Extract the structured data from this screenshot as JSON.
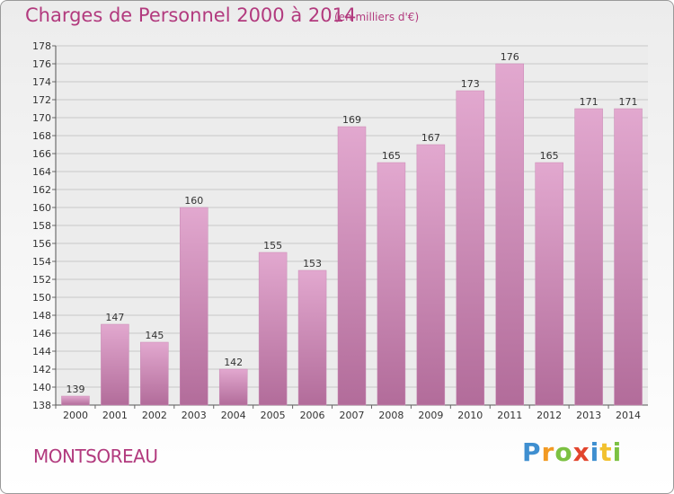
{
  "header": {
    "title": "Charges de Personnel 2000 à 2014",
    "subtitle": "(en milliers d'€)"
  },
  "footer": {
    "commune": "MONTSOREAU",
    "logo_text": "Proxiti"
  },
  "colors": {
    "bar_top": "#e2a8cf",
    "bar_bottom": "#b26c9a",
    "title": "#b23a7e"
  },
  "chart_data": {
    "type": "bar",
    "title": "Charges de Personnel 2000 à 2014",
    "subtitle": "(en milliers d'€)",
    "xlabel": "",
    "ylabel": "",
    "categories": [
      "2000",
      "2001",
      "2002",
      "2003",
      "2004",
      "2005",
      "2006",
      "2007",
      "2008",
      "2009",
      "2010",
      "2011",
      "2012",
      "2013",
      "2014"
    ],
    "values": [
      139,
      147,
      145,
      160,
      142,
      155,
      153,
      169,
      165,
      167,
      173,
      176,
      165,
      171,
      171
    ],
    "ylim": [
      138,
      178
    ],
    "ytick_step": 2,
    "grid": true,
    "data_labels": true
  }
}
